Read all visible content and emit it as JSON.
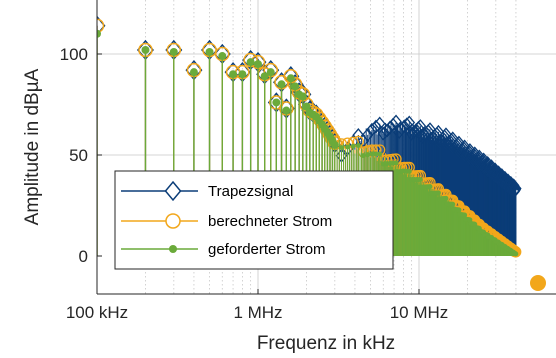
{
  "chart_data": {
    "type": "stem",
    "xlabel": "Frequenz in kHz",
    "ylabel": "Amplitude in dBµA",
    "xscale": "log",
    "xlim": [
      100,
      40000
    ],
    "ylim": [
      0,
      120
    ],
    "grid": true,
    "legend_position": "lower-left",
    "xticks": [
      {
        "value": 100,
        "label": "100 kHz"
      },
      {
        "value": 1000,
        "label": "1 MHz"
      },
      {
        "value": 10000,
        "label": "10 MHz"
      }
    ],
    "yticks": [
      {
        "value": 0,
        "label": "0"
      },
      {
        "value": 50,
        "label": "50"
      },
      {
        "value": 100,
        "label": "100"
      }
    ],
    "series": [
      {
        "name": "Trapezsignal",
        "color": "#0b3d78",
        "marker": "diamond",
        "fundamental_khz": 100,
        "values": [
          114,
          102,
          102,
          92,
          102,
          100,
          91,
          91,
          97,
          96,
          90,
          92,
          76,
          86,
          73,
          89,
          85,
          81,
          80,
          75,
          72,
          71,
          70,
          68,
          66,
          64,
          62,
          60,
          58,
          56
        ],
        "envelope": [
          [
            3000,
            50
          ],
          [
            5000,
            65
          ],
          [
            8000,
            67
          ],
          [
            15000,
            60
          ],
          [
            25000,
            48
          ],
          [
            40000,
            34
          ]
        ]
      },
      {
        "name": "berechneter Strom",
        "color": "#f2a71b",
        "marker": "circle",
        "fundamental_khz": 100,
        "values": [
          114,
          102,
          102,
          92,
          102,
          100,
          91,
          91,
          97,
          96,
          90,
          92,
          76,
          86,
          73,
          89,
          85,
          81,
          80,
          75,
          72,
          71,
          70,
          68,
          66,
          64,
          62,
          60,
          58,
          56
        ],
        "envelope": [
          [
            3000,
            60
          ],
          [
            5000,
            55
          ],
          [
            8000,
            46
          ],
          [
            15000,
            30
          ],
          [
            25000,
            14
          ],
          [
            40000,
            2
          ]
        ]
      },
      {
        "name": "geforderter Strom",
        "color": "#6aaa3a",
        "marker": "dot",
        "fundamental_khz": 100,
        "values": [
          110,
          102,
          101,
          91,
          101,
          99,
          90,
          90,
          96,
          95,
          89,
          91,
          76,
          85,
          72,
          88,
          84,
          80,
          79,
          74,
          71,
          70,
          69,
          67,
          65,
          63,
          61,
          59,
          57,
          55
        ],
        "envelope": [
          [
            3000,
            58
          ],
          [
            5000,
            53
          ],
          [
            8000,
            44
          ],
          [
            15000,
            28
          ],
          [
            25000,
            12
          ],
          [
            40000,
            1
          ]
        ]
      }
    ]
  }
}
